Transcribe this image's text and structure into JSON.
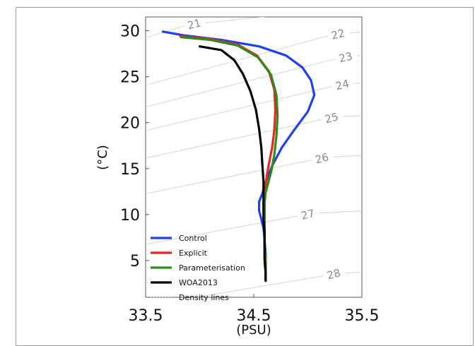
{
  "chart_data": {
    "type": "line",
    "title": "",
    "xlabel": "(PSU)",
    "ylabel": "(°C)",
    "xlim": [
      33.5,
      35.5
    ],
    "ylim": [
      1.0,
      31.5
    ],
    "xticks": [
      "33.5",
      "34.5",
      "35.5"
    ],
    "yticks": [
      "5",
      "10",
      "15",
      "20",
      "25",
      "30"
    ],
    "legend_position": "lower-left",
    "series": [
      {
        "name": "Control",
        "color": "#1f3ff0",
        "dashed": false,
        "points": [
          [
            33.66,
            29.9
          ],
          [
            33.85,
            29.5
          ],
          [
            34.2,
            29.0
          ],
          [
            34.55,
            28.3
          ],
          [
            34.8,
            27.3
          ],
          [
            34.95,
            26.0
          ],
          [
            35.03,
            24.6
          ],
          [
            35.06,
            23.0
          ],
          [
            35.0,
            21.2
          ],
          [
            34.88,
            19.3
          ],
          [
            34.76,
            17.3
          ],
          [
            34.67,
            15.3
          ],
          [
            34.61,
            13.5
          ],
          [
            34.58,
            12.3
          ],
          [
            34.55,
            11.4
          ],
          [
            34.55,
            10.4
          ],
          [
            34.57,
            9.5
          ],
          [
            34.59,
            8.5
          ],
          [
            34.6,
            7.2
          ],
          [
            34.61,
            5.8
          ],
          [
            34.61,
            4.4
          ],
          [
            34.61,
            3.0
          ]
        ]
      },
      {
        "name": "Explicit",
        "color": "#e8281e",
        "dashed": false,
        "points": [
          [
            33.82,
            29.4
          ],
          [
            34.1,
            29.1
          ],
          [
            34.35,
            28.5
          ],
          [
            34.53,
            27.3
          ],
          [
            34.64,
            25.6
          ],
          [
            34.69,
            23.6
          ],
          [
            34.7,
            21.4
          ],
          [
            34.69,
            19.2
          ],
          [
            34.67,
            17.3
          ],
          [
            34.64,
            15.5
          ],
          [
            34.62,
            14.2
          ],
          [
            34.61,
            13.2
          ],
          [
            34.6,
            12.3
          ],
          [
            34.6,
            11.0
          ],
          [
            34.6,
            9.5
          ],
          [
            34.6,
            8.0
          ],
          [
            34.6,
            6.5
          ],
          [
            34.6,
            5.0
          ],
          [
            34.61,
            3.5
          ],
          [
            34.61,
            2.8
          ]
        ]
      },
      {
        "name": "Parameterisation",
        "color": "#2e8a1a",
        "dashed": false,
        "points": [
          [
            33.83,
            29.3
          ],
          [
            34.1,
            29.0
          ],
          [
            34.35,
            28.4
          ],
          [
            34.54,
            27.1
          ],
          [
            34.66,
            25.2
          ],
          [
            34.71,
            23.0
          ],
          [
            34.72,
            20.8
          ],
          [
            34.71,
            18.6
          ],
          [
            34.69,
            16.5
          ],
          [
            34.66,
            14.6
          ],
          [
            34.63,
            13.3
          ],
          [
            34.61,
            12.4
          ],
          [
            34.6,
            11.2
          ],
          [
            34.6,
            9.7
          ],
          [
            34.6,
            8.2
          ],
          [
            34.6,
            6.7
          ],
          [
            34.61,
            5.2
          ],
          [
            34.61,
            3.7
          ],
          [
            34.61,
            2.8
          ]
        ]
      },
      {
        "name": "WOA2013",
        "color": "#000000",
        "dashed": false,
        "points": [
          [
            34.0,
            28.3
          ],
          [
            34.2,
            27.9
          ],
          [
            34.32,
            26.8
          ],
          [
            34.4,
            25.3
          ],
          [
            34.47,
            23.4
          ],
          [
            34.52,
            21.4
          ],
          [
            34.55,
            19.3
          ],
          [
            34.57,
            17.3
          ],
          [
            34.58,
            15.4
          ],
          [
            34.59,
            13.6
          ],
          [
            34.59,
            12.2
          ],
          [
            34.59,
            10.8
          ],
          [
            34.59,
            9.4
          ],
          [
            34.6,
            8.0
          ],
          [
            34.6,
            6.6
          ],
          [
            34.6,
            5.2
          ],
          [
            34.61,
            3.8
          ],
          [
            34.61,
            2.8
          ]
        ]
      },
      {
        "name": "Density lines",
        "color": "#909090",
        "dashed": true,
        "points": []
      }
    ],
    "density_labels": [
      {
        "label": "21",
        "x": 33.95,
        "y": 30.7
      },
      {
        "label": "22",
        "x": 35.28,
        "y": 29.6
      },
      {
        "label": "23",
        "x": 35.35,
        "y": 27.1
      },
      {
        "label": "24",
        "x": 35.32,
        "y": 24.1
      },
      {
        "label": "25",
        "x": 35.22,
        "y": 20.5
      },
      {
        "label": "26",
        "x": 35.13,
        "y": 16.1
      },
      {
        "label": "27",
        "x": 35.0,
        "y": 10.0
      },
      {
        "label": "28",
        "x": 35.24,
        "y": 3.5
      }
    ],
    "grid": false
  }
}
